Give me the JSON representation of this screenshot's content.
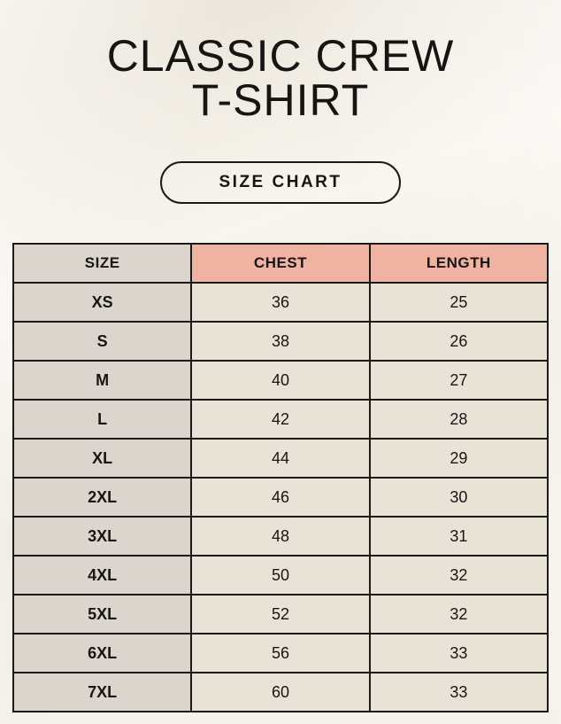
{
  "page": {
    "title_line1": "CLASSIC CREW",
    "title_line2": "T-SHIRT",
    "button_label": "SIZE CHART"
  },
  "colors": {
    "background": "#F4F0E8",
    "header_accent": "#F0B2A1",
    "size_column": "#DBD5CE",
    "data_cell": "#E9E3D7",
    "border": "#1C1A18",
    "text": "#171514"
  },
  "chart_data": {
    "type": "table",
    "title": "SIZE CHART",
    "columns": [
      "SIZE",
      "CHEST",
      "LENGTH"
    ],
    "rows": [
      [
        "XS",
        36,
        25
      ],
      [
        "S",
        38,
        26
      ],
      [
        "M",
        40,
        27
      ],
      [
        "L",
        42,
        28
      ],
      [
        "XL",
        44,
        29
      ],
      [
        "2XL",
        46,
        30
      ],
      [
        "3XL",
        48,
        31
      ],
      [
        "4XL",
        50,
        32
      ],
      [
        "5XL",
        52,
        32
      ],
      [
        "6XL",
        56,
        33
      ],
      [
        "7XL",
        60,
        33
      ]
    ]
  }
}
